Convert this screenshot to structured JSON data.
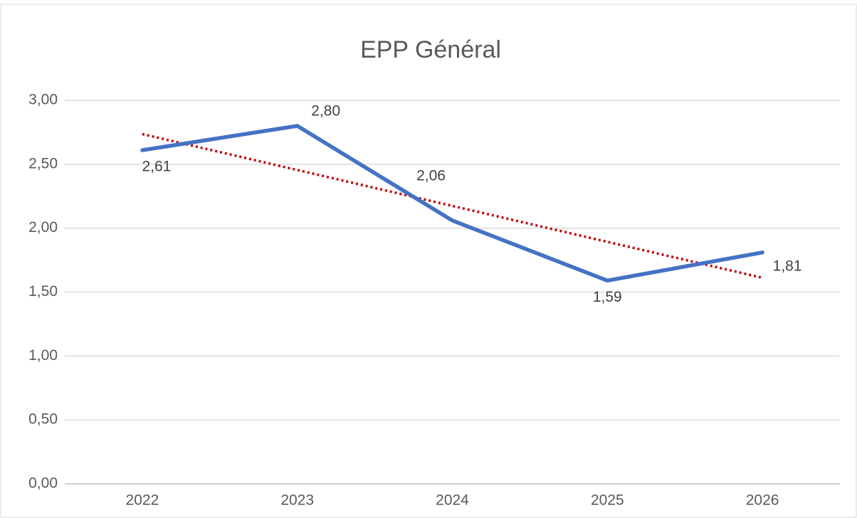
{
  "chart_data": {
    "type": "line",
    "title": "EPP Général",
    "categories": [
      "2022",
      "2023",
      "2024",
      "2025",
      "2026"
    ],
    "series": [
      {
        "name": "EPP Général",
        "color": "#4472c4",
        "values": [
          2.61,
          2.8,
          2.06,
          1.59,
          1.81
        ],
        "value_labels": [
          "2,61",
          "2,80",
          "2,06",
          "1,59",
          "1,81"
        ]
      }
    ],
    "ylim": [
      0,
      3
    ],
    "yticks": [
      {
        "value": 0,
        "label": "0,00"
      },
      {
        "value": 0.5,
        "label": "0,50"
      },
      {
        "value": 1,
        "label": "1,00"
      },
      {
        "value": 1.5,
        "label": "1,50"
      },
      {
        "value": 2,
        "label": "2,00"
      },
      {
        "value": 2.5,
        "label": "2,50"
      },
      {
        "value": 3,
        "label": "3,00"
      }
    ],
    "grid": true,
    "trendline": {
      "type": "linear",
      "color": "#c00000"
    }
  }
}
